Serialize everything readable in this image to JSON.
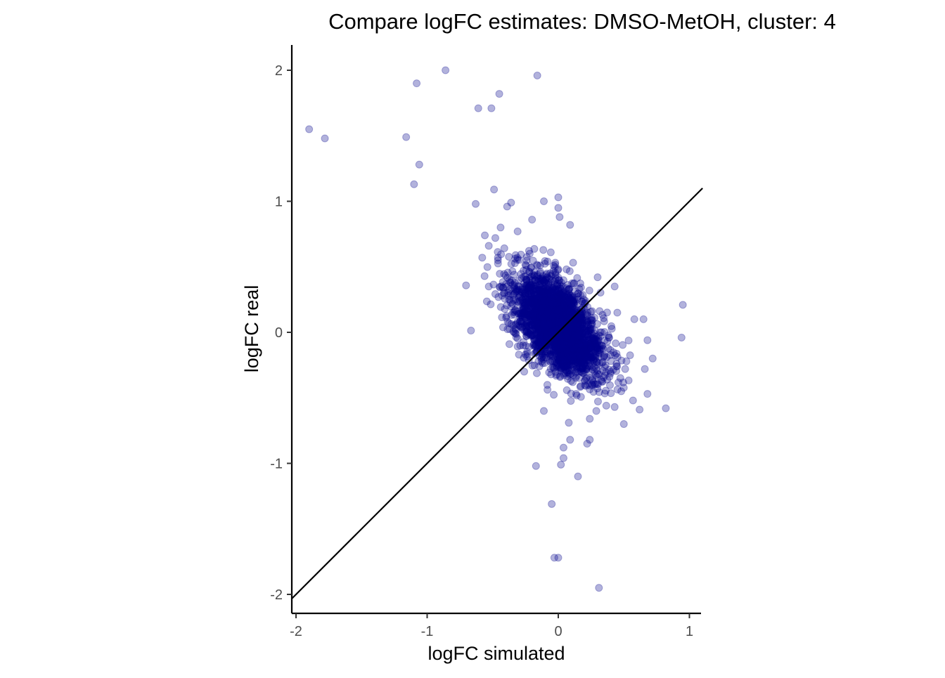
{
  "chart_data": {
    "type": "scatter",
    "title": "Compare logFC estimates: DMSO-MetOH, cluster: 4",
    "xlabel": "logFC simulated",
    "ylabel": "logFC real",
    "xlim": [
      -2.03,
      1.1
    ],
    "ylim": [
      -2.1,
      2.2
    ],
    "x_ticks": [
      -2,
      -1,
      0,
      1
    ],
    "y_ticks": [
      -2,
      -1,
      0,
      1,
      2
    ],
    "x_tick_labels": [
      "-2",
      "-1",
      "0",
      "1"
    ],
    "y_tick_labels": [
      "-2",
      "-1",
      "0",
      "1",
      "2"
    ],
    "grid": false,
    "point_color": "#00008B",
    "point_opacity": 0.3,
    "reference_line": {
      "type": "identity",
      "slope": 1,
      "intercept": 0,
      "color": "#000000"
    },
    "dense_cluster": {
      "description_count": 2600,
      "x_mean": 0.0,
      "y_mean": 0.05,
      "x_sd": 0.17,
      "y_sd": 0.2,
      "correlation": -0.55
    },
    "points": [
      {
        "x": -1.9,
        "y": 1.55
      },
      {
        "x": -1.78,
        "y": 1.48
      },
      {
        "x": -1.08,
        "y": 1.9
      },
      {
        "x": -0.86,
        "y": 2.0
      },
      {
        "x": -0.16,
        "y": 1.96
      },
      {
        "x": -0.45,
        "y": 1.82
      },
      {
        "x": -0.61,
        "y": 1.71
      },
      {
        "x": -0.51,
        "y": 1.71
      },
      {
        "x": -1.16,
        "y": 1.49
      },
      {
        "x": -1.06,
        "y": 1.28
      },
      {
        "x": -1.1,
        "y": 1.13
      },
      {
        "x": -0.63,
        "y": 0.98
      },
      {
        "x": -0.49,
        "y": 1.09
      },
      {
        "x": 0.0,
        "y": 1.03
      },
      {
        "x": -0.11,
        "y": 1.0
      },
      {
        "x": -0.36,
        "y": 0.99
      },
      {
        "x": -0.39,
        "y": 0.96
      },
      {
        "x": 0.0,
        "y": 0.95
      },
      {
        "x": 0.01,
        "y": 0.88
      },
      {
        "x": -0.2,
        "y": 0.86
      },
      {
        "x": 0.09,
        "y": 0.82
      },
      {
        "x": -0.56,
        "y": 0.74
      },
      {
        "x": -0.53,
        "y": 0.66
      },
      {
        "x": -0.48,
        "y": 0.72
      },
      {
        "x": -0.44,
        "y": 0.8
      },
      {
        "x": -0.31,
        "y": 0.77
      },
      {
        "x": 0.95,
        "y": 0.21
      },
      {
        "x": 0.94,
        "y": -0.04
      },
      {
        "x": 0.82,
        "y": -0.58
      },
      {
        "x": 0.62,
        "y": -0.59
      },
      {
        "x": 0.5,
        "y": -0.7
      },
      {
        "x": 0.68,
        "y": -0.47
      },
      {
        "x": 0.72,
        "y": -0.2
      },
      {
        "x": 0.66,
        "y": -0.28
      },
      {
        "x": 0.57,
        "y": -0.52
      },
      {
        "x": 0.68,
        "y": -0.06
      },
      {
        "x": 0.65,
        "y": 0.1
      },
      {
        "x": 0.58,
        "y": 0.1
      },
      {
        "x": 0.43,
        "y": 0.35
      },
      {
        "x": 0.3,
        "y": 0.42
      },
      {
        "x": 0.45,
        "y": 0.15
      },
      {
        "x": 0.48,
        "y": -0.45
      },
      {
        "x": 0.43,
        "y": -0.57
      },
      {
        "x": -0.53,
        "y": 0.35
      },
      {
        "x": -0.46,
        "y": 0.55
      },
      {
        "x": -0.58,
        "y": 0.57
      },
      {
        "x": 0.24,
        "y": -0.82
      },
      {
        "x": 0.22,
        "y": -0.85
      },
      {
        "x": 0.09,
        "y": -0.82
      },
      {
        "x": 0.04,
        "y": -0.88
      },
      {
        "x": 0.04,
        "y": -0.96
      },
      {
        "x": 0.02,
        "y": -1.01
      },
      {
        "x": -0.17,
        "y": -1.02
      },
      {
        "x": 0.15,
        "y": -1.1
      },
      {
        "x": -0.05,
        "y": -1.31
      },
      {
        "x": -0.03,
        "y": -1.72
      },
      {
        "x": 0.0,
        "y": -1.72
      },
      {
        "x": 0.31,
        "y": -1.95
      },
      {
        "x": 0.29,
        "y": -0.6
      },
      {
        "x": 0.24,
        "y": -0.66
      },
      {
        "x": 0.08,
        "y": -0.69
      },
      {
        "x": -0.11,
        "y": -0.6
      },
      {
        "x": -0.26,
        "y": -0.3
      },
      {
        "x": -0.3,
        "y": -0.17
      },
      {
        "x": 0.39,
        "y": -0.34
      },
      {
        "x": 0.51,
        "y": -0.28
      }
    ]
  }
}
